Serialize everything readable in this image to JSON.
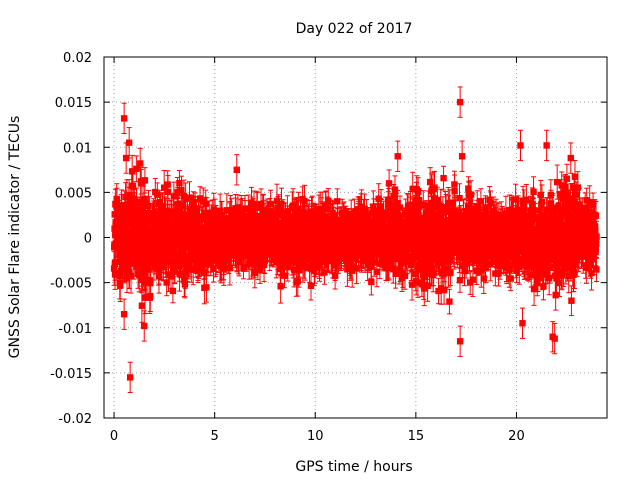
{
  "chart_data": {
    "type": "scatter",
    "title": "Day 022 of 2017",
    "xlabel": "GPS time / hours",
    "ylabel": "GNSS Solar Flare indicator / TECUs",
    "xlim": [
      -0.5,
      24.5
    ],
    "ylim": [
      -0.02,
      0.02
    ],
    "xticks": [
      0,
      5,
      10,
      15,
      20
    ],
    "xtick_labels": [
      "0",
      "5",
      "10",
      "15",
      "20"
    ],
    "yticks": [
      -0.02,
      -0.015,
      -0.01,
      -0.005,
      0,
      0.005,
      0.01,
      0.015,
      0.02
    ],
    "ytick_labels": [
      "-0.02",
      "-0.015",
      "-0.01",
      "-0.005",
      "0",
      "0.005",
      "0.01",
      "0.015",
      "0.02"
    ],
    "grid": true,
    "colors": {
      "series": "#ff0000",
      "grid": "#a0a0a0"
    },
    "series": [
      {
        "marker": "square",
        "error_bars": true,
        "sampling_interval_hours": 0.00833,
        "time_range_hours": [
          0,
          23.99
        ],
        "typical_error": 0.0016,
        "typical_spread": 0.003,
        "notable_points": [
          {
            "x": 0.5,
            "y": 0.0132
          },
          {
            "x": 0.75,
            "y": 0.0105
          },
          {
            "x": 0.6,
            "y": 0.0088
          },
          {
            "x": 0.8,
            "y": -0.0155
          },
          {
            "x": 1.5,
            "y": -0.0098
          },
          {
            "x": 0.5,
            "y": -0.0085
          },
          {
            "x": 17.2,
            "y": 0.015
          },
          {
            "x": 17.2,
            "y": -0.0115
          },
          {
            "x": 17.3,
            "y": 0.009
          },
          {
            "x": 20.2,
            "y": 0.0102
          },
          {
            "x": 21.5,
            "y": 0.0102
          },
          {
            "x": 22.7,
            "y": 0.0088
          },
          {
            "x": 21.8,
            "y": -0.011
          },
          {
            "x": 21.9,
            "y": -0.0112
          },
          {
            "x": 20.3,
            "y": -0.0095
          },
          {
            "x": 14.1,
            "y": 0.009
          },
          {
            "x": 6.1,
            "y": 0.0075
          },
          {
            "x": 1.3,
            "y": 0.0082
          }
        ]
      }
    ]
  }
}
